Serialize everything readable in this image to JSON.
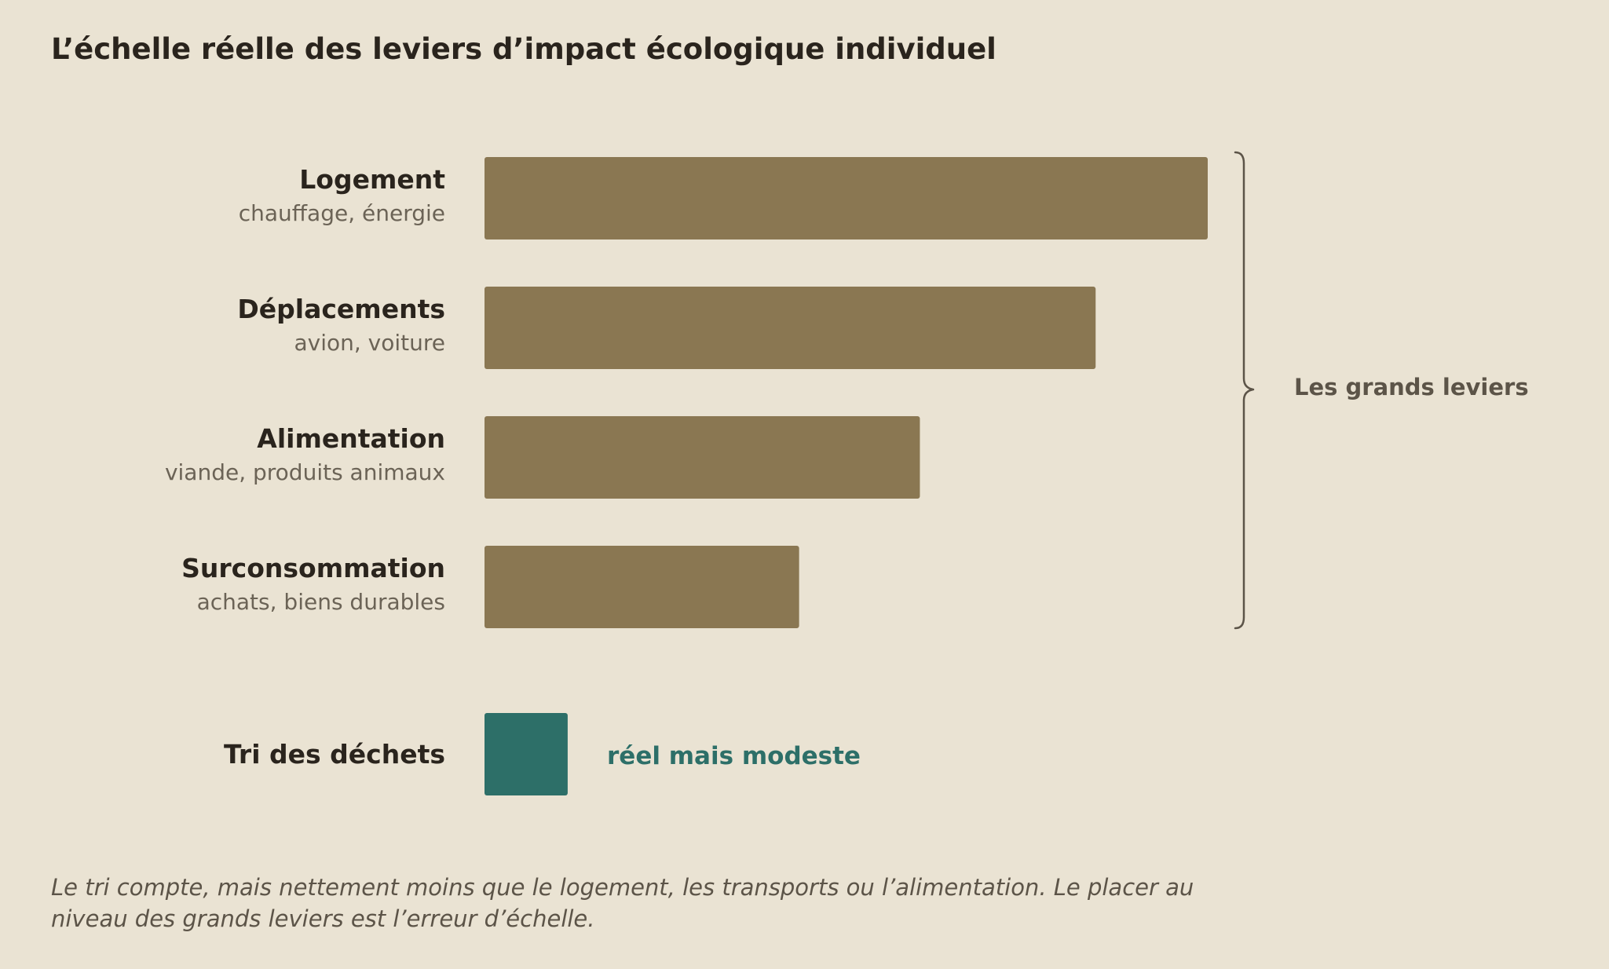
{
  "chart_data": {
    "type": "bar",
    "orientation": "horizontal",
    "title": "L’échelle réelle des leviers d’impact écologique individuel",
    "categories": [
      "Logement",
      "Déplacements",
      "Alimentation",
      "Surconsommation"
    ],
    "subtitles": [
      "chauffage, énergie",
      "avion, voiture",
      "viande, produits animaux",
      "achats, biens durables"
    ],
    "values": [
      100,
      84.5,
      60.2,
      43.5
    ],
    "highlight": {
      "category": "Tri des déchets",
      "value": 11.5,
      "annotation": "réel mais modeste"
    },
    "group_annotation": "Les grands leviers",
    "caption_lines": [
      "Le tri compte, mais nettement moins que le logement, les transports ou l’alimentation. Le placer au",
      "niveau des grands leviers est l’erreur d’échelle."
    ],
    "xlim": [
      0,
      100
    ],
    "grid": false,
    "legend": "none",
    "colors": {
      "background": "#eae3d3",
      "bar": "#8a7752",
      "highlight_bar": "#2d6f68",
      "highlight_text": "#2d6f68",
      "text_dark": "#2a241d",
      "text_muted": "#6b6356",
      "brace": "#5c5448"
    }
  }
}
